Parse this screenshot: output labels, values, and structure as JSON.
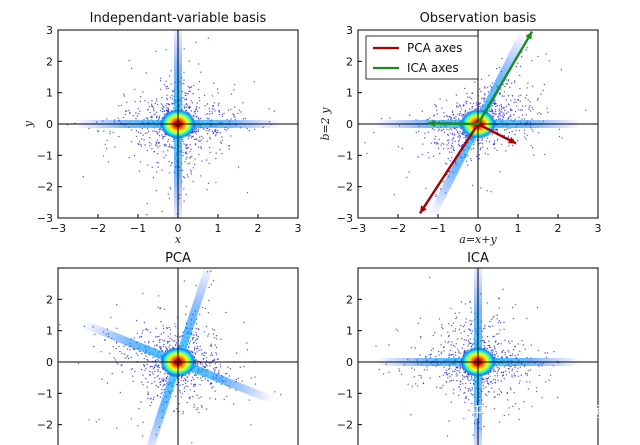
{
  "colors": {
    "background": "#ffffff",
    "axis": "#000000",
    "scatter_outer": "#2020d0",
    "density_colormap": [
      "#0000c8",
      "#00a0ff",
      "#40ffb0",
      "#ffff00",
      "#ff8000",
      "#d00000",
      "#800000"
    ],
    "pca_axes": "#aa0000",
    "ica_axes": "#1a8a1a"
  },
  "watermark": "知乎 @python大数据分析",
  "chart_data": [
    {
      "type": "scatter",
      "title": "Independant-variable basis",
      "xlabel": "x",
      "ylabel": "y",
      "xlim": [
        -3,
        3
      ],
      "ylim": [
        -3,
        3
      ],
      "xticks": [
        "−3",
        "−2",
        "−1",
        "0",
        "1",
        "2",
        "3"
      ],
      "yticks": [
        "−3",
        "−2",
        "−1",
        "0",
        "1",
        "2",
        "3"
      ],
      "grid": false,
      "zero_lines": true,
      "distribution": "cross",
      "arm_directions_deg": [
        0,
        90
      ],
      "center": [
        0,
        0
      ]
    },
    {
      "type": "scatter",
      "title": "Observation basis",
      "xlabel": "a=x+y",
      "ylabel": "b=2 y",
      "xlim": [
        -3,
        3
      ],
      "ylim": [
        -3,
        3
      ],
      "xticks": [
        "−3",
        "−2",
        "−1",
        "0",
        "1",
        "2",
        "3"
      ],
      "yticks": [
        "−3",
        "−2",
        "−1",
        "0",
        "1",
        "2",
        "3"
      ],
      "grid": false,
      "zero_lines": true,
      "distribution": "sheared-cross",
      "arm_directions_deg": [
        0,
        63.4
      ],
      "center": [
        0,
        0
      ],
      "legend": {
        "placement": "top-left",
        "entries": [
          {
            "label": "PCA axes",
            "color": "#aa0000"
          },
          {
            "label": "ICA axes",
            "color": "#1a8a1a"
          }
        ]
      },
      "arrows": [
        {
          "series": "PCA axes",
          "from": [
            0,
            0
          ],
          "to": [
            -1.45,
            -2.85
          ]
        },
        {
          "series": "PCA axes",
          "from": [
            0,
            0
          ],
          "to": [
            0.95,
            -0.62
          ]
        },
        {
          "series": "ICA axes",
          "from": [
            0,
            0
          ],
          "to": [
            1.35,
            2.95
          ]
        },
        {
          "series": "ICA axes",
          "from": [
            0,
            0
          ],
          "to": [
            -1.25,
            0.02
          ]
        }
      ]
    },
    {
      "type": "scatter",
      "title": "PCA",
      "xlabel": "",
      "ylabel": "",
      "xlim": [
        -3,
        3
      ],
      "ylim": [
        -3,
        3
      ],
      "xticks": [],
      "yticks": [
        "2",
        "1",
        "0",
        "−1",
        "−2"
      ],
      "grid": false,
      "zero_lines": true,
      "distribution": "rotated-cross",
      "arm_directions_deg": [
        -22,
        72
      ],
      "center": [
        0,
        0
      ]
    },
    {
      "type": "scatter",
      "title": "ICA",
      "xlabel": "",
      "ylabel": "",
      "xlim": [
        -3,
        3
      ],
      "ylim": [
        -3,
        3
      ],
      "xticks": [],
      "yticks": [
        "2",
        "1",
        "0",
        "−1",
        "−2"
      ],
      "grid": false,
      "zero_lines": true,
      "distribution": "cross",
      "arm_directions_deg": [
        0,
        90
      ],
      "center": [
        0,
        0
      ]
    }
  ]
}
